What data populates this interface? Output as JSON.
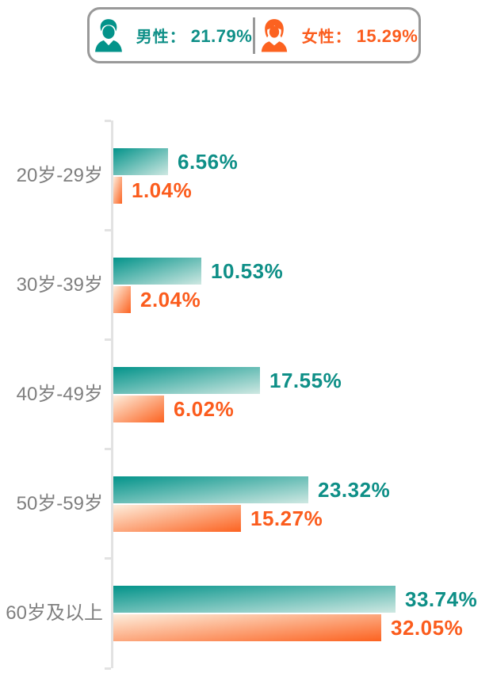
{
  "legend": {
    "male": {
      "label": "男性：",
      "value": "21.79%"
    },
    "female": {
      "label": "女性：",
      "value": "15.29%"
    }
  },
  "chart_data": {
    "type": "bar",
    "orientation": "horizontal",
    "title": "",
    "categories": [
      "20岁-29岁",
      "30岁-39岁",
      "40岁-49岁",
      "50岁-59岁",
      "60岁及以上"
    ],
    "series": [
      {
        "name": "男性",
        "values": [
          6.56,
          10.53,
          17.55,
          23.32,
          33.74
        ],
        "labels": [
          "6.56%",
          "10.53%",
          "17.55%",
          "23.32%",
          "33.74%"
        ],
        "color": "#03938a"
      },
      {
        "name": "女性",
        "values": [
          1.04,
          2.04,
          6.02,
          15.27,
          32.05
        ],
        "labels": [
          "1.04%",
          "2.04%",
          "6.02%",
          "15.27%",
          "32.05%"
        ],
        "color": "#fc6220"
      }
    ],
    "value_unit": "%",
    "xlim": [
      0,
      36
    ],
    "grid": false,
    "legend_position": "top",
    "value_labels": "outside-end"
  },
  "icons": {
    "male": "male-person-icon",
    "female": "female-person-icon"
  },
  "colors": {
    "male": "#03938a",
    "male_light": "#cfe8e2",
    "female": "#fc6220",
    "female_light": "#fdeedd",
    "male_text": "#0e8f87",
    "female_text": "#fb5c1d",
    "category_label": "#7f7f7f",
    "axis": "#e2e2e2",
    "legend_border": "#999999",
    "background": "#ffffff"
  }
}
